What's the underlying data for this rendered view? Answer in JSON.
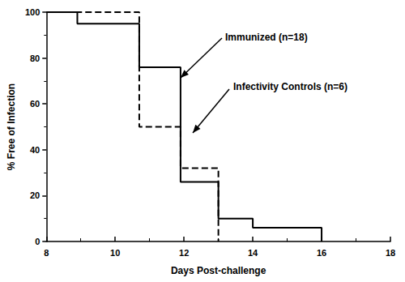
{
  "chart_data": {
    "type": "step",
    "x_label": "Days Post-challenge",
    "y_label": "% Free of Infection",
    "xlim": [
      8,
      18
    ],
    "xticks": [
      8,
      10,
      12,
      14,
      16,
      18
    ],
    "ylim": [
      0,
      100
    ],
    "yticks": [
      0,
      20,
      40,
      60,
      80,
      100
    ],
    "grid": false,
    "series": [
      {
        "name": "Immunized (n=18)",
        "color": "#000000",
        "line_style": "solid",
        "marker": "none",
        "x": [
          8,
          8.9,
          10.7,
          11.9,
          13,
          14,
          16
        ],
        "values": [
          100,
          95,
          76,
          26,
          10,
          6,
          0
        ]
      },
      {
        "name": "Infectivity Controls (n=6)",
        "color": "#000000",
        "line_style": "dashed",
        "marker": "none",
        "x": [
          8,
          10.7,
          11.9,
          13
        ],
        "values": [
          100,
          50,
          32,
          0
        ]
      }
    ]
  }
}
